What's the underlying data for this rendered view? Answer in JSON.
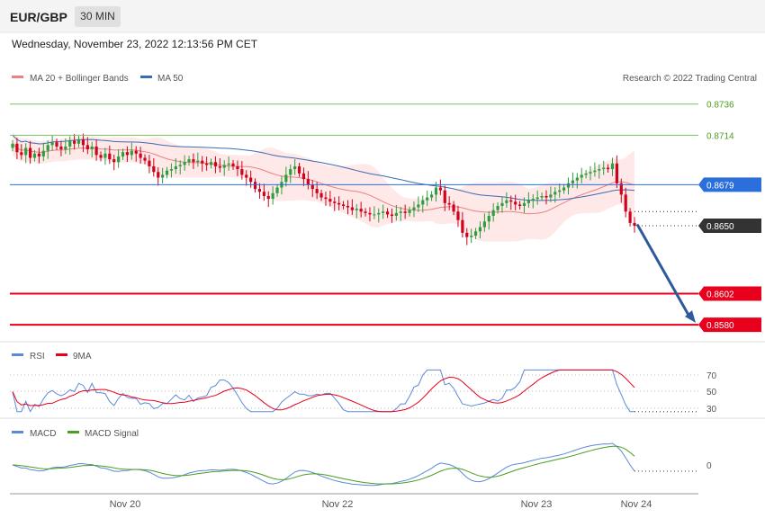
{
  "header": {
    "symbol": "EUR/GBP",
    "timeframe": "30 MIN"
  },
  "datetime": "Wednesday, November 23, 2022 12:13:56 PM CET",
  "copyright": "Research © 2022 Trading Central",
  "colors": {
    "up": "#2e9e3e",
    "down": "#d0021b",
    "ma20": "#f08080",
    "band": "#fde0e0",
    "ma50": "#3b6bb5",
    "resistance": "#7cc25a",
    "pivot": "#2a6fdb",
    "support": "#e8001c",
    "last": "#333333",
    "arrow": "#2d5a9a",
    "rsi": "#5b8ad8",
    "rsi_ma": "#e8001c",
    "macd": "#5b8ad8",
    "macd_signal": "#4a9e20"
  },
  "chart_data": [
    {
      "type": "candlestick",
      "panel": "price",
      "legend": [
        "MA 20 + Bollinger Bands",
        "MA 50"
      ],
      "ylim": [
        0.8568,
        0.8746
      ],
      "x_ticks": [
        "Nov 20",
        "Nov 22",
        "Nov 23",
        "Nov 24"
      ],
      "levels": [
        {
          "label": "0.8736",
          "value": 0.8736,
          "kind": "resistance"
        },
        {
          "label": "0.8714",
          "value": 0.8714,
          "kind": "resistance"
        },
        {
          "label": "0.8679",
          "value": 0.8679,
          "kind": "pivot"
        },
        {
          "label": "0.8650",
          "value": 0.865,
          "kind": "last"
        },
        {
          "label": "0.8602",
          "value": 0.8602,
          "kind": "support"
        },
        {
          "label": "0.8580",
          "value": 0.858,
          "kind": "support"
        }
      ],
      "close": [
        0.8708,
        0.8702,
        0.87,
        0.8705,
        0.8698,
        0.8701,
        0.8699,
        0.8703,
        0.8707,
        0.8709,
        0.8706,
        0.8704,
        0.8706,
        0.871,
        0.8708,
        0.8711,
        0.8707,
        0.8704,
        0.8706,
        0.87,
        0.8698,
        0.8701,
        0.8697,
        0.8695,
        0.8699,
        0.8702,
        0.87,
        0.8703,
        0.8701,
        0.8698,
        0.8696,
        0.8692,
        0.8688,
        0.8684,
        0.8686,
        0.8689,
        0.869,
        0.8692,
        0.8693,
        0.8695,
        0.8697,
        0.8695,
        0.8696,
        0.8694,
        0.8693,
        0.8695,
        0.8692,
        0.8691,
        0.8693,
        0.8694,
        0.8692,
        0.869,
        0.8686,
        0.8684,
        0.8681,
        0.8676,
        0.8674,
        0.8671,
        0.8669,
        0.8673,
        0.8677,
        0.8681,
        0.8686,
        0.869,
        0.8692,
        0.8687,
        0.8683,
        0.8679,
        0.8676,
        0.8673,
        0.867,
        0.8669,
        0.8667,
        0.8666,
        0.8665,
        0.8664,
        0.8663,
        0.8661,
        0.8662,
        0.866,
        0.8659,
        0.8658,
        0.8658,
        0.8659,
        0.866,
        0.8658,
        0.8657,
        0.8659,
        0.866,
        0.8659,
        0.8661,
        0.8663,
        0.8665,
        0.8668,
        0.867,
        0.8672,
        0.8677,
        0.8675,
        0.8666,
        0.8665,
        0.866,
        0.8654,
        0.8645,
        0.8642,
        0.8643,
        0.8646,
        0.8649,
        0.8653,
        0.8657,
        0.8661,
        0.8664,
        0.8666,
        0.8668,
        0.8667,
        0.8665,
        0.8664,
        0.8666,
        0.8668,
        0.8669,
        0.867,
        0.8671,
        0.867,
        0.8672,
        0.8674,
        0.8675,
        0.8677,
        0.868,
        0.8682,
        0.8684,
        0.8686,
        0.8687,
        0.8688,
        0.8689,
        0.869,
        0.8691,
        0.869,
        0.8694,
        0.868,
        0.8672,
        0.866,
        0.8652,
        0.865
      ]
    },
    {
      "type": "line",
      "panel": "rsi",
      "series": [
        {
          "name": "RSI"
        },
        {
          "name": "9MA"
        }
      ],
      "y_ticks": [
        70,
        50,
        30
      ],
      "ylim": [
        26,
        76
      ]
    },
    {
      "type": "line",
      "panel": "macd",
      "series": [
        {
          "name": "MACD"
        },
        {
          "name": "MACD Signal"
        }
      ],
      "y_ticks": [
        0
      ]
    }
  ]
}
